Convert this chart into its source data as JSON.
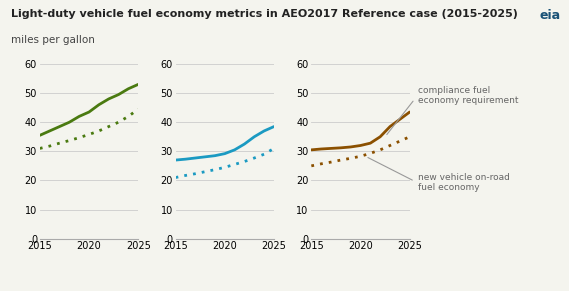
{
  "title": "Light-duty vehicle fuel economy metrics in AEO2017 Reference case (2015-2025)",
  "subtitle": "miles per gallon",
  "years": [
    2015,
    2016,
    2017,
    2018,
    2019,
    2020,
    2021,
    2022,
    2023,
    2024,
    2025
  ],
  "passenger_cars_solid": [
    35.5,
    37.0,
    38.5,
    40.0,
    42.0,
    43.5,
    46.0,
    48.0,
    49.5,
    51.5,
    53.0
  ],
  "passenger_cars_dotted": [
    31.0,
    31.8,
    32.8,
    33.7,
    34.7,
    35.8,
    37.0,
    38.5,
    40.0,
    42.0,
    44.5
  ],
  "light_trucks_solid": [
    27.0,
    27.3,
    27.7,
    28.1,
    28.5,
    29.2,
    30.5,
    32.5,
    35.0,
    37.0,
    38.5
  ],
  "light_trucks_dotted": [
    21.0,
    21.7,
    22.3,
    23.0,
    23.7,
    24.5,
    25.5,
    26.5,
    27.7,
    29.0,
    31.0
  ],
  "weighted_solid": [
    30.5,
    30.8,
    31.0,
    31.2,
    31.5,
    32.0,
    32.8,
    35.0,
    38.5,
    41.0,
    43.5
  ],
  "weighted_dotted": [
    25.0,
    25.7,
    26.3,
    27.0,
    27.6,
    28.3,
    29.3,
    30.5,
    32.0,
    33.5,
    35.0
  ],
  "color_green": "#4a7a10",
  "color_blue": "#1b9ac2",
  "color_brown": "#8B5000",
  "color_label_green": "#6ab01e",
  "color_label_blue": "#1b9ac2",
  "color_label_brown": "#c07820",
  "ylim": [
    0,
    60
  ],
  "yticks": [
    0,
    10,
    20,
    30,
    40,
    50,
    60
  ],
  "background": "#f4f4ee",
  "grid_color": "#cccccc",
  "annotation_color": "#666666",
  "arrow_color": "#999999"
}
